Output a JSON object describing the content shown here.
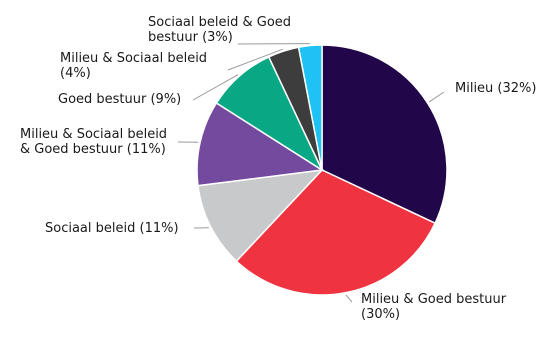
{
  "chart_data": {
    "type": "pie",
    "title": "",
    "slices": [
      {
        "name": "Milieu",
        "value": 32,
        "label_lines": [
          "Milieu (32%)"
        ],
        "color": "#22064a"
      },
      {
        "name": "Milieu & Goed bestuur",
        "value": 30,
        "label_lines": [
          "Milieu & Goed bestuur",
          "(30%)"
        ],
        "color": "#ef3340"
      },
      {
        "name": "Sociaal beleid",
        "value": 11,
        "label_lines": [
          "Sociaal beleid (11%)"
        ],
        "color": "#c8c9cb"
      },
      {
        "name": "Milieu & Sociaal beleid & Goed bestuur",
        "value": 11,
        "label_lines": [
          "Milieu & Sociaal beleid",
          "& Goed bestuur (11%)"
        ],
        "color": "#744a9e"
      },
      {
        "name": "Goed bestuur",
        "value": 9,
        "label_lines": [
          "Goed bestuur (9%)"
        ],
        "color": "#08a884"
      },
      {
        "name": "Milieu & Sociaal beleid",
        "value": 4,
        "label_lines": [
          "Milieu & Sociaal beleid",
          "(4%)"
        ],
        "color": "#3d3d3d"
      },
      {
        "name": "Sociaal beleid & Goed bestuur",
        "value": 3,
        "label_lines": [
          "Sociaal beleid & Goed",
          "bestuur (3%)"
        ],
        "color": "#1ec2f4"
      }
    ]
  }
}
